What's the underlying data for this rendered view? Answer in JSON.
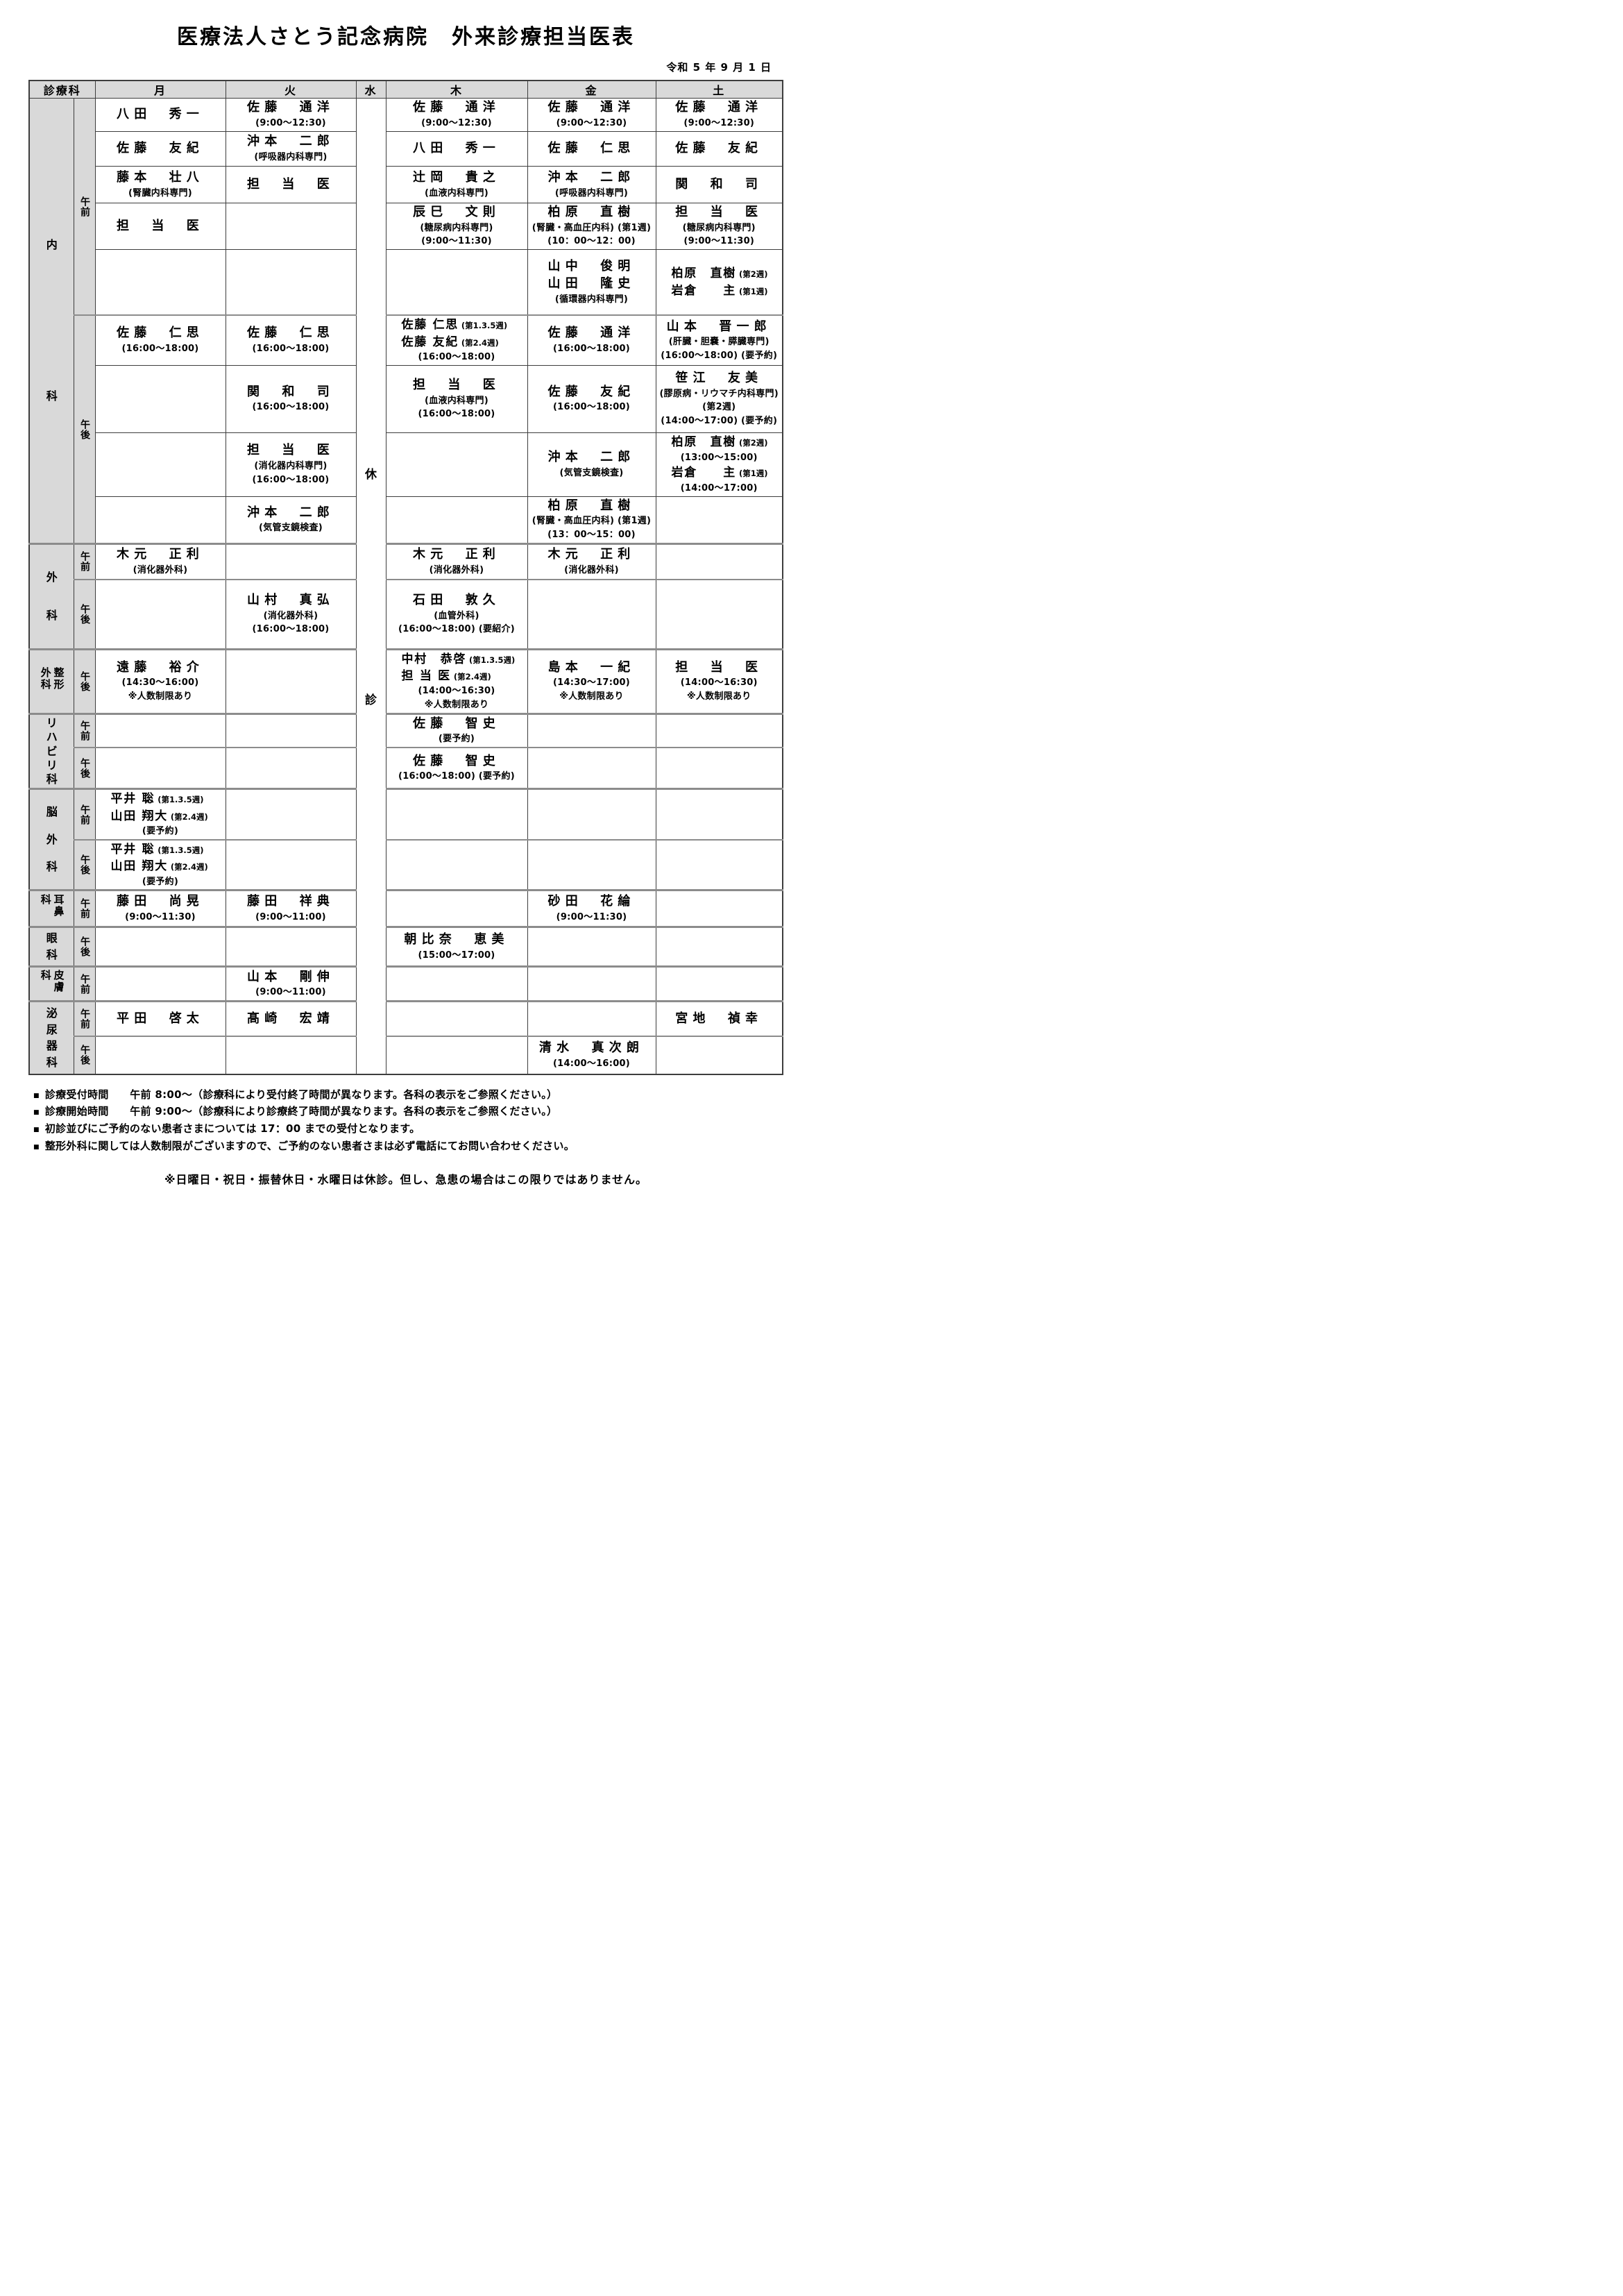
{
  "title": "医療法人さとう記念病院　外来診療担当医表",
  "date": "令和 5 年 9 月 1 日",
  "columns": [
    "診療科",
    "月",
    "火",
    "水",
    "木",
    "金",
    "土"
  ],
  "wednesday_label": "休診",
  "ampm_labels": {
    "am": "午前",
    "pm": "午後"
  },
  "header_bg": "#d9d9d9",
  "section_line_color": "#8c8c8c",
  "departments": [
    {
      "name": "内科",
      "label_wrap": false,
      "blocks": [
        {
          "period": "am",
          "rows": [
            [
              [
                {
                  "n": "八田　秀一"
                }
              ],
              [
                {
                  "n": "佐藤　通洋"
                },
                {
                  "t": "(9:00～12:30)"
                }
              ],
              [
                {
                  "n": "佐藤　通洋"
                },
                {
                  "t": "(9:00～12:30)"
                }
              ],
              [
                {
                  "n": "佐藤　通洋"
                },
                {
                  "t": "(9:00～12:30)"
                }
              ],
              [
                {
                  "n": "佐藤　通洋"
                },
                {
                  "t": "(9:00～12:30)"
                }
              ]
            ],
            [
              [
                {
                  "n": "佐藤　友紀"
                }
              ],
              [
                {
                  "n": "沖本　二郎"
                },
                {
                  "t": "(呼吸器内科専門)"
                }
              ],
              [
                {
                  "n": "八田　秀一"
                }
              ],
              [
                {
                  "n": "佐藤　仁思"
                }
              ],
              [
                {
                  "n": "佐藤　友紀"
                }
              ]
            ],
            [
              [
                {
                  "n": "藤本　壮八"
                },
                {
                  "t": "(腎臓内科専門)"
                }
              ],
              [
                {
                  "n": "担　当　医"
                }
              ],
              [
                {
                  "n": "辻岡　貴之"
                },
                {
                  "t": "(血液内科専門)"
                }
              ],
              [
                {
                  "n": "沖本　二郎"
                },
                {
                  "t": "(呼吸器内科専門)"
                }
              ],
              [
                {
                  "n": "関　和　司"
                }
              ]
            ],
            [
              [
                {
                  "n": "担　当　医"
                }
              ],
              [],
              [
                {
                  "n": "辰巳　文則"
                },
                {
                  "t": "(糖尿病内科専門)"
                },
                {
                  "t": "(9:00～11:30)"
                }
              ],
              [
                {
                  "n": "柏原　直樹"
                },
                {
                  "t": "(腎臓・高血圧内科) (第1週)"
                },
                {
                  "t": "(10：00～12：00)"
                }
              ],
              [
                {
                  "n": "担　当　医"
                },
                {
                  "t": "(糖尿病内科専門)"
                },
                {
                  "t": "(9:00～11:30)"
                }
              ]
            ],
            [
              [],
              [],
              [],
              [
                {
                  "n": "山中　俊明"
                },
                {
                  "n": "山田　隆史"
                },
                {
                  "t": "(循環器内科専門)"
                }
              ],
              [
                {
                  "n": "柏原　直樹",
                  "s": "(第2週)"
                },
                {
                  "n": "岩倉　　主",
                  "s": "(第1週)"
                }
              ]
            ]
          ]
        },
        {
          "period": "pm",
          "rows": [
            [
              [
                {
                  "n": "佐藤　仁思"
                },
                {
                  "t": "(16:00～18:00)"
                }
              ],
              [
                {
                  "n": "佐藤　仁思"
                },
                {
                  "t": "(16:00～18:00)"
                }
              ],
              [
                {
                  "n": "佐藤 仁思",
                  "s": "(第1.3.5週)"
                },
                {
                  "n": "佐藤 友紀",
                  "s": "(第2.4週)"
                },
                {
                  "t": "(16:00～18:00)"
                }
              ],
              [
                {
                  "n": "佐藤　通洋"
                },
                {
                  "t": "(16:00～18:00)"
                }
              ],
              [
                {
                  "n": "山本　晋一郎"
                },
                {
                  "t": "(肝臓・胆嚢・膵臓専門)"
                },
                {
                  "t": "(16:00～18:00) (要予約)"
                }
              ]
            ],
            [
              [],
              [
                {
                  "n": "関　和　司"
                },
                {
                  "t": "(16:00～18:00)"
                }
              ],
              [
                {
                  "n": "担　当　医"
                },
                {
                  "t": "(血液内科専門)"
                },
                {
                  "t": "(16:00～18:00)"
                }
              ],
              [
                {
                  "n": "佐藤　友紀"
                },
                {
                  "t": "(16:00～18:00)"
                }
              ],
              [
                {
                  "n": "笹江　友美"
                },
                {
                  "t": "(膠原病・リウマチ内科専門)"
                },
                {
                  "t": "(第2週)"
                },
                {
                  "t": "(14:00～17:00) (要予約)"
                }
              ]
            ],
            [
              [],
              [
                {
                  "n": "担　当　医"
                },
                {
                  "t": "(消化器内科専門)"
                },
                {
                  "t": "(16:00～18:00)"
                }
              ],
              [],
              [
                {
                  "n": "沖本　二郎"
                },
                {
                  "t": "(気管支鏡検査)"
                }
              ],
              [
                {
                  "n": "柏原　直樹",
                  "s": "(第2週)"
                },
                {
                  "t": "(13:00～15:00)"
                },
                {
                  "n": "岩倉　　主",
                  "s": "(第1週)"
                },
                {
                  "t": "(14:00～17:00)"
                }
              ]
            ],
            [
              [],
              [
                {
                  "n": "沖本　二郎"
                },
                {
                  "t": "(気管支鏡検査)"
                }
              ],
              [],
              [
                {
                  "n": "柏原　直樹"
                },
                {
                  "t": "(腎臓・高血圧内科) (第1週)"
                },
                {
                  "t": "(13：00～15：00)"
                }
              ],
              []
            ]
          ]
        }
      ]
    },
    {
      "name": "外科",
      "label_wrap": false,
      "blocks": [
        {
          "period": "am",
          "rows": [
            [
              [
                {
                  "n": "木元　正利"
                },
                {
                  "t": "(消化器外科)"
                }
              ],
              [],
              [
                {
                  "n": "木元　正利"
                },
                {
                  "t": "(消化器外科)"
                }
              ],
              [
                {
                  "n": "木元　正利"
                },
                {
                  "t": "(消化器外科)"
                }
              ],
              []
            ]
          ]
        },
        {
          "period": "pm",
          "rows": [
            [
              [],
              [
                {
                  "n": "山村　真弘"
                },
                {
                  "t": "(消化器外科)"
                },
                {
                  "t": "(16:00～18:00)"
                }
              ],
              [
                {
                  "n": "石田　敦久"
                },
                {
                  "t": "(血管外科)"
                },
                {
                  "t": "(16:00～18:00) (要紹介)"
                }
              ],
              [],
              []
            ]
          ]
        }
      ]
    },
    {
      "name": "整形外科",
      "label_wrap": true,
      "blocks": [
        {
          "period": "pm",
          "rows": [
            [
              [
                {
                  "n": "遠藤　裕介"
                },
                {
                  "t": "(14:30～16:00)"
                },
                {
                  "t": "※人数制限あり"
                }
              ],
              [],
              [
                {
                  "n": "中村　恭啓",
                  "s": "(第1.3.5週)"
                },
                {
                  "n": "担 当 医",
                  "s": "(第2.4週)"
                },
                {
                  "t": "(14:00～16:30)"
                },
                {
                  "t": "※人数制限あり"
                }
              ],
              [
                {
                  "n": "島本　一紀"
                },
                {
                  "t": "(14:30～17:00)"
                },
                {
                  "t": "※人数制限あり"
                }
              ],
              [
                {
                  "n": "担　当　医"
                },
                {
                  "t": "(14:00～16:30)"
                },
                {
                  "t": "※人数制限あり"
                }
              ]
            ]
          ]
        }
      ]
    },
    {
      "name": "リハビリ科",
      "label_wrap": false,
      "blocks": [
        {
          "period": "am",
          "rows": [
            [
              [],
              [],
              [
                {
                  "n": "佐藤　智史"
                },
                {
                  "t": "(要予約)"
                }
              ],
              [],
              []
            ]
          ]
        },
        {
          "period": "pm",
          "rows": [
            [
              [],
              [],
              [
                {
                  "n": "佐藤　智史"
                },
                {
                  "t": "(16:00～18:00) (要予約)"
                }
              ],
              [],
              []
            ]
          ]
        }
      ]
    },
    {
      "name": "脳外科",
      "label_wrap": false,
      "blocks": [
        {
          "period": "am",
          "rows": [
            [
              [
                {
                  "n": "平井 聡",
                  "s": "(第1.3.5週)"
                },
                {
                  "n": "山田 翔大",
                  "s": "(第2.4週)"
                },
                {
                  "t": "(要予約)"
                }
              ],
              [],
              [],
              [],
              []
            ]
          ]
        },
        {
          "period": "pm",
          "rows": [
            [
              [
                {
                  "n": "平井 聡",
                  "s": "(第1.3.5週)"
                },
                {
                  "n": "山田 翔大",
                  "s": "(第2.4週)"
                },
                {
                  "t": "(要予約)"
                }
              ],
              [],
              [],
              [],
              []
            ]
          ]
        }
      ]
    },
    {
      "name": "耳鼻科",
      "label_wrap": true,
      "blocks": [
        {
          "period": "am",
          "rows": [
            [
              [
                {
                  "n": "藤田　尚晃"
                },
                {
                  "t": "(9:00～11:30)"
                }
              ],
              [
                {
                  "n": "藤田　祥典"
                },
                {
                  "t": "(9:00～11:00)"
                }
              ],
              [],
              [
                {
                  "n": "砂田　花綸"
                },
                {
                  "t": "(9:00～11:30)"
                }
              ],
              []
            ]
          ]
        }
      ]
    },
    {
      "name": "眼科",
      "label_wrap": false,
      "blocks": [
        {
          "period": "pm",
          "rows": [
            [
              [],
              [],
              [
                {
                  "n": "朝比奈　恵美"
                },
                {
                  "t": "(15:00～17:00)"
                }
              ],
              [],
              []
            ]
          ]
        }
      ]
    },
    {
      "name": "皮膚科",
      "label_wrap": true,
      "blocks": [
        {
          "period": "am",
          "rows": [
            [
              [],
              [
                {
                  "n": "山本　剛伸"
                },
                {
                  "t": "(9:00～11:00)"
                }
              ],
              [],
              [],
              []
            ]
          ]
        }
      ]
    },
    {
      "name": "泌尿器科",
      "label_wrap": false,
      "blocks": [
        {
          "period": "am",
          "rows": [
            [
              [
                {
                  "n": "平田　啓太"
                }
              ],
              [
                {
                  "n": "髙崎　宏靖"
                }
              ],
              [],
              [],
              [
                {
                  "n": "宮地　禎幸"
                }
              ]
            ]
          ]
        },
        {
          "period": "pm",
          "rows": [
            [
              [],
              [],
              [],
              [
                {
                  "n": "清水　真次朗"
                },
                {
                  "t": "(14:00～16:00)"
                }
              ],
              []
            ]
          ]
        }
      ]
    }
  ],
  "notes_bullet": "■",
  "notes": [
    "診療受付時間　　午前 8:00～（診療科により受付終了時間が異なります。各科の表示をご参照ください。）",
    "診療開始時間　　午前 9:00～（診療科により診療終了時間が異なります。各科の表示をご参照ください。）",
    "初診並びにご予約のない患者さまについては 17：00 までの受付となります。",
    "整形外科に関しては人数制限がございますので、ご予約のない患者さまは必ず電話にてお問い合わせください。"
  ],
  "footnote": "※日曜日・祝日・振替休日・水曜日は休診。但し、急患の場合はこの限りではありません。"
}
